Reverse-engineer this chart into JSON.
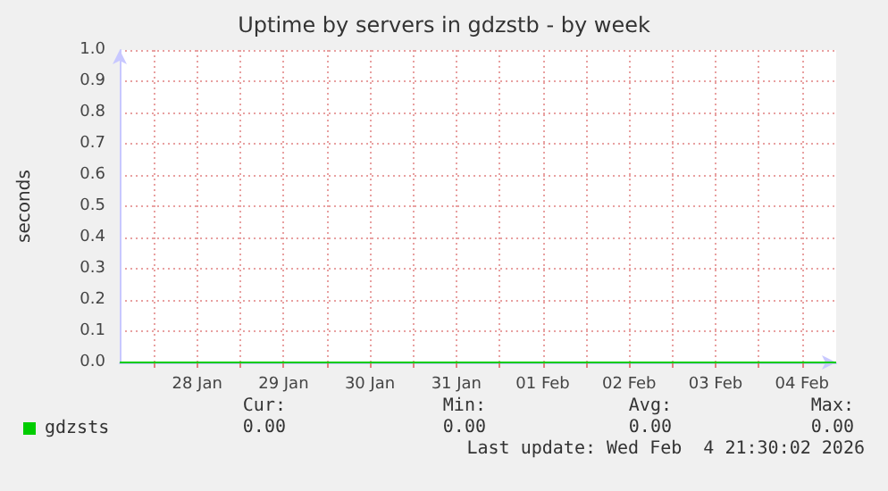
{
  "chart_data": {
    "type": "line",
    "title": "Uptime by servers in gdzstb - by week",
    "ylabel": "seconds",
    "x": [
      "2026-01-27T14:30",
      "2026-01-29T12:00",
      "2026-01-31T12:00",
      "2026-02-02T12:00",
      "2026-02-04T21:30"
    ],
    "series": [
      {
        "name": "gdzsts",
        "color": "#00cc00",
        "values": [
          0,
          0,
          0,
          0,
          0
        ]
      }
    ],
    "xlim": [
      "2026-01-27T14:30",
      "2026-02-04T21:30"
    ],
    "xticks": [
      {
        "value": "2026-01-28T00:00",
        "label": null
      },
      {
        "value": "2026-01-28T12:00",
        "label": "28 Jan"
      },
      {
        "value": "2026-01-29T00:00",
        "label": null
      },
      {
        "value": "2026-01-29T12:00",
        "label": "29 Jan"
      },
      {
        "value": "2026-01-30T00:00",
        "label": null
      },
      {
        "value": "2026-01-30T12:00",
        "label": "30 Jan"
      },
      {
        "value": "2026-01-31T00:00",
        "label": null
      },
      {
        "value": "2026-01-31T12:00",
        "label": "31 Jan"
      },
      {
        "value": "2026-02-01T00:00",
        "label": null
      },
      {
        "value": "2026-02-01T12:00",
        "label": "01 Feb"
      },
      {
        "value": "2026-02-02T00:00",
        "label": null
      },
      {
        "value": "2026-02-02T12:00",
        "label": "02 Feb"
      },
      {
        "value": "2026-02-03T00:00",
        "label": null
      },
      {
        "value": "2026-02-03T12:00",
        "label": "03 Feb"
      },
      {
        "value": "2026-02-04T00:00",
        "label": null
      },
      {
        "value": "2026-02-04T12:00",
        "label": "04 Feb"
      }
    ],
    "ylim": [
      0,
      1
    ],
    "yticks": [
      {
        "value": 0,
        "label": "0.0"
      },
      {
        "value": 0.1,
        "label": "0.1"
      },
      {
        "value": 0.2,
        "label": "0.2"
      },
      {
        "value": 0.3,
        "label": "0.3"
      },
      {
        "value": 0.4,
        "label": "0.4"
      },
      {
        "value": 0.5,
        "label": "0.5"
      },
      {
        "value": 0.6,
        "label": "0.6"
      },
      {
        "value": 0.7,
        "label": "0.7"
      },
      {
        "value": 0.8,
        "label": "0.8"
      },
      {
        "value": 0.9,
        "label": "0.9"
      },
      {
        "value": 1,
        "label": "1.0"
      }
    ],
    "grid": true,
    "legend": "bottom left",
    "marker": "none",
    "line_style": "solid",
    "annotations": [
      "Cur:",
      "Min:",
      "Avg:",
      "Max:",
      "0.00",
      "0.00",
      "0.00",
      "0.00",
      "Last update: Wed Feb  4 21:30:02 2026"
    ]
  }
}
